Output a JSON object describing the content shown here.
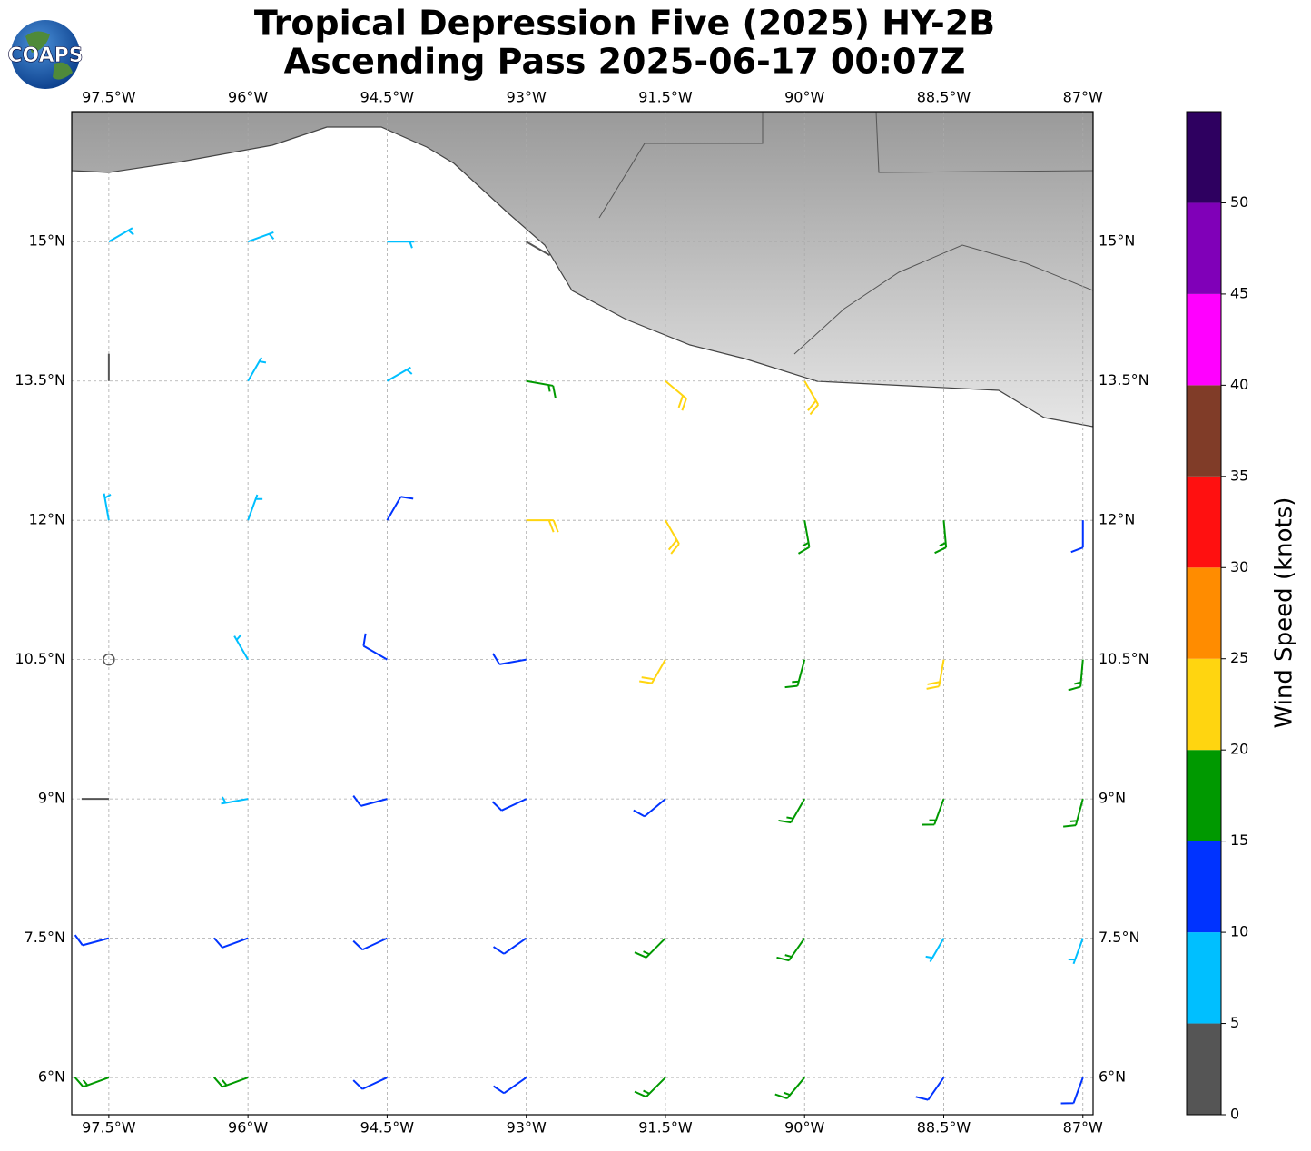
{
  "chart_data": {
    "type": "wind-barb",
    "logo": "COAPS",
    "title": "Tropical Depression Five (2025) HY-2B",
    "subtitle": "Ascending Pass 2025-06-17 00:07Z",
    "xlim": [
      -97.9,
      -86.89
    ],
    "ylim": [
      5.6,
      16.4
    ],
    "xticks": [
      {
        "value": -97.5,
        "label": "97.5°W"
      },
      {
        "value": -96,
        "label": "96°W"
      },
      {
        "value": -94.5,
        "label": "94.5°W"
      },
      {
        "value": -93,
        "label": "93°W"
      },
      {
        "value": -91.5,
        "label": "91.5°W"
      },
      {
        "value": -90,
        "label": "90°W"
      },
      {
        "value": -88.5,
        "label": "88.5°W"
      },
      {
        "value": -87,
        "label": "87°W"
      }
    ],
    "yticks": [
      {
        "value": 6,
        "label": "6°N"
      },
      {
        "value": 7.5,
        "label": "7.5°N"
      },
      {
        "value": 9,
        "label": "9°N"
      },
      {
        "value": 10.5,
        "label": "10.5°N"
      },
      {
        "value": 12,
        "label": "12°N"
      },
      {
        "value": 13.5,
        "label": "13.5°N"
      },
      {
        "value": 15,
        "label": "15°N"
      }
    ],
    "grid": true,
    "x": [
      -97.5,
      -96,
      -94.5,
      -93,
      -91.5,
      -90,
      -88.5,
      -87,
      -97.5,
      -96,
      -94.5,
      -93,
      -91.5,
      -90,
      -88.5,
      -87,
      -97.5,
      -96,
      -94.5,
      -93,
      -91.5,
      -90,
      -88.5,
      -87,
      -97.5,
      -96,
      -94.5,
      -93,
      -91.5,
      -90,
      -88.5,
      -87,
      -97.5,
      -96,
      -94.5,
      -93,
      -91.5,
      -90,
      -88.5,
      -87,
      -97.5,
      -96,
      -94.5,
      -93,
      -91.5,
      -90,
      -97.5,
      -96,
      -94.5,
      -93
    ],
    "y": [
      6,
      6,
      6,
      6,
      6,
      6,
      6,
      6,
      7.5,
      7.5,
      7.5,
      7.5,
      7.5,
      7.5,
      7.5,
      7.5,
      9,
      9,
      9,
      9,
      9,
      9,
      9,
      9,
      10.5,
      10.5,
      10.5,
      10.5,
      10.5,
      10.5,
      10.5,
      10.5,
      12,
      12,
      12,
      12,
      12,
      12,
      12,
      12,
      13.5,
      13.5,
      13.5,
      13.5,
      13.5,
      13.5,
      15,
      15,
      15,
      15
    ],
    "speed": [
      16,
      16,
      14,
      13,
      17,
      18,
      14,
      12,
      12,
      13,
      13,
      13,
      16,
      17,
      9,
      8,
      3,
      8,
      11,
      12,
      13,
      15,
      17,
      16,
      2,
      5,
      12,
      14,
      21,
      18,
      22,
      17,
      8,
      7,
      11,
      22,
      22,
      18,
      15,
      14,
      4,
      8,
      6,
      19,
      22,
      22,
      8,
      9,
      7,
      4
    ],
    "direction": [
      250,
      250,
      245,
      235,
      225,
      220,
      215,
      200,
      255,
      250,
      245,
      235,
      225,
      215,
      210,
      200,
      270,
      260,
      255,
      245,
      230,
      210,
      200,
      195,
      300,
      330,
      300,
      260,
      210,
      195,
      190,
      185,
      350,
      20,
      30,
      90,
      150,
      170,
      175,
      180,
      0,
      30,
      60,
      100,
      130,
      150,
      60,
      70,
      90,
      120
    ],
    "colorbar": {
      "label": "Wind Speed (knots)",
      "lim": [
        0,
        55
      ],
      "ticks": [
        0,
        5,
        10,
        15,
        20,
        25,
        30,
        35,
        40,
        45,
        50
      ],
      "bounds": [
        0,
        5,
        10,
        15,
        20,
        25,
        30,
        35,
        40,
        45,
        50,
        55
      ],
      "colors": [
        "#555555",
        "#00bfff",
        "#0033ff",
        "#009900",
        "#ffd510",
        "#ff8c00",
        "#ff1010",
        "#803c28",
        "#ff00ff",
        "#8000b8",
        "#2e0060"
      ]
    }
  }
}
